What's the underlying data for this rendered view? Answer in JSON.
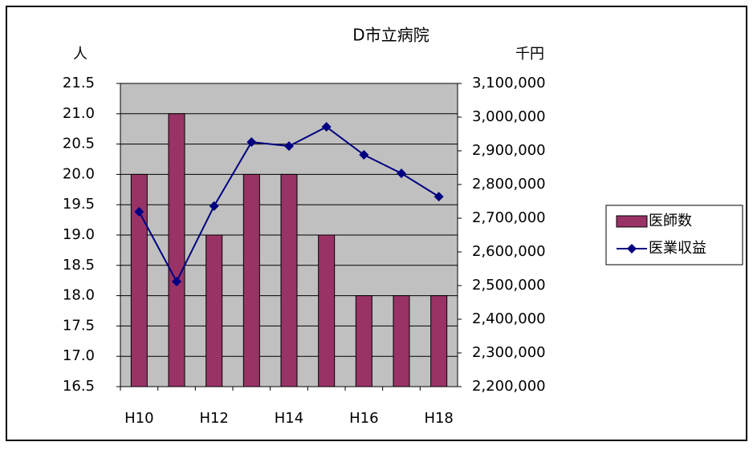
{
  "chart_data": {
    "type": "bar",
    "title": "D市立病院",
    "y_label": "人",
    "y2_label": "千円",
    "categories": [
      "H10",
      null,
      "H12",
      null,
      "H14",
      null,
      "H16",
      null,
      "H18"
    ],
    "series": [
      {
        "name": "医師数",
        "color": "#993366",
        "values": [
          20,
          21,
          19,
          20,
          20,
          19,
          18,
          18,
          18
        ]
      },
      {
        "name": "医業収益",
        "color": "#000080",
        "type": "line",
        "axis": "y2",
        "values": [
          2719000,
          2512000,
          2736000,
          2926000,
          2914000,
          2971000,
          2888000,
          2833000,
          2764000
        ]
      }
    ],
    "ylim": [
      16.5,
      21.5
    ],
    "yticks": [
      16.5,
      {
        "value": 17,
        "label": "17.0"
      },
      17.5,
      {
        "value": 18,
        "label": "18.0"
      },
      18.5,
      {
        "value": 19,
        "label": "19.0"
      },
      19.5,
      {
        "value": 20,
        "label": "20.0"
      },
      20.5,
      {
        "value": 21,
        "label": "21.0"
      },
      21.5
    ],
    "y2lim": [
      2200000,
      3100000
    ],
    "y2ticks": [
      {
        "value": 2200000,
        "label": "2,200,000"
      },
      {
        "value": 2300000,
        "label": "2,300,000"
      },
      {
        "value": 2400000,
        "label": "2,400,000"
      },
      {
        "value": 2500000,
        "label": "2,500,000"
      },
      {
        "value": 2600000,
        "label": "2,600,000"
      },
      {
        "value": 2700000,
        "label": "2,700,000"
      },
      {
        "value": 2800000,
        "label": "2,800,000"
      },
      {
        "value": 2900000,
        "label": "2,900,000"
      },
      {
        "value": 3000000,
        "label": "3,000,000"
      },
      {
        "value": 3100000,
        "label": "3,100,000"
      }
    ],
    "grid": true,
    "plot_background": "#c0c0c0",
    "legend": "right"
  }
}
